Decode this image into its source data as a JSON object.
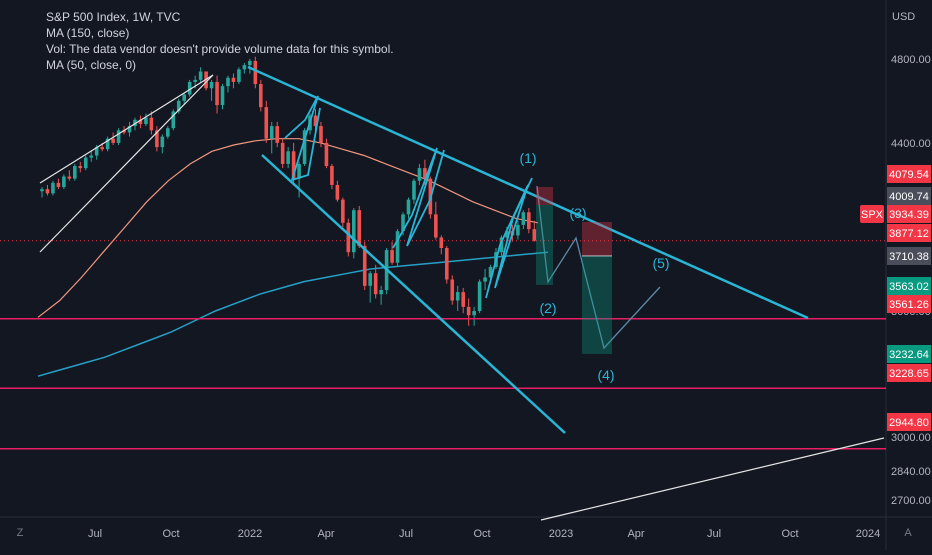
{
  "header": {
    "symbol_line": "S&P 500 Index, 1W, TVC",
    "ma150_label": "MA (150, close)",
    "vol_label": "Vol: The data vendor doesn't provide volume data for this symbol.",
    "ma50_label": "MA (50, close, 0)"
  },
  "corner": {
    "left_label": "Z",
    "right_label": "A"
  },
  "colors": {
    "background": "#131722",
    "candle_up": "#26a69a",
    "candle_down": "#ef5350",
    "ma150": "#26a0c6",
    "ma50": "#f0977e",
    "trendline": "#29b6d6",
    "support": "#e91e63",
    "white_line": "#e6e6e6",
    "price_tag": "#f23645"
  },
  "chart_data": {
    "type": "line",
    "title": "S&P 500 Index, 1W, TVC",
    "currency": "USD",
    "ylim": [
      2620,
      5080
    ],
    "x_ticks": [
      "Jul",
      "Oct",
      "2022",
      "Apr",
      "Jul",
      "Oct",
      "2023",
      "Apr",
      "Jul",
      "Oct",
      "2024"
    ],
    "y_ticks": [
      2700.0,
      2840.0,
      3000.0,
      3400.0,
      3600.0,
      4400.0,
      4800.0
    ],
    "price_labels": [
      {
        "label": "4079.54",
        "value": 4079.54,
        "color": "#f23645"
      },
      {
        "label": "4009.74",
        "value": 4009.74,
        "color": "#4a4e5a"
      },
      {
        "label": "SPX",
        "value": 3934.39,
        "color": "#f23645"
      },
      {
        "label": "3934.39",
        "value": 3934.39,
        "color": "#f23645"
      },
      {
        "label": "3877.12",
        "value": 3877.12,
        "color": "#f23645"
      },
      {
        "label": "3710.38",
        "value": 3710.38,
        "color": "#4a4e5a"
      },
      {
        "label": "3563.02",
        "value": 3563.02,
        "color": "#089981"
      },
      {
        "label": "3561.26",
        "value": 3561.26,
        "color": "#f23645"
      },
      {
        "label": "3232.64",
        "value": 3232.64,
        "color": "#089981"
      },
      {
        "label": "3228.65",
        "value": 3228.65,
        "color": "#f23645"
      },
      {
        "label": "2944.80",
        "value": 2944.8,
        "color": "#f23645"
      }
    ],
    "last_price": 3934.39,
    "support_levels": [
      3563.02,
      3232.64,
      2944.8
    ],
    "wave_labels": [
      "(1)",
      "(2)",
      "(3)",
      "(4)",
      "(5)"
    ],
    "series": [
      {
        "type": "candlestick",
        "values": [
          [
            4170,
            4190,
            4140,
            4180
          ],
          [
            4180,
            4200,
            4150,
            4160
          ],
          [
            4160,
            4220,
            4150,
            4210
          ],
          [
            4210,
            4230,
            4180,
            4190
          ],
          [
            4190,
            4250,
            4180,
            4240
          ],
          [
            4240,
            4270,
            4220,
            4230
          ],
          [
            4230,
            4300,
            4220,
            4290
          ],
          [
            4290,
            4310,
            4260,
            4280
          ],
          [
            4280,
            4340,
            4270,
            4330
          ],
          [
            4330,
            4360,
            4310,
            4340
          ],
          [
            4340,
            4390,
            4320,
            4380
          ],
          [
            4380,
            4400,
            4360,
            4370
          ],
          [
            4370,
            4430,
            4360,
            4420
          ],
          [
            4420,
            4450,
            4390,
            4400
          ],
          [
            4400,
            4470,
            4390,
            4460
          ],
          [
            4460,
            4480,
            4440,
            4450
          ],
          [
            4450,
            4500,
            4430,
            4480
          ],
          [
            4480,
            4520,
            4460,
            4510
          ],
          [
            4510,
            4530,
            4470,
            4490
          ],
          [
            4490,
            4540,
            4480,
            4520
          ],
          [
            4520,
            4550,
            4440,
            4460
          ],
          [
            4460,
            4480,
            4360,
            4380
          ],
          [
            4380,
            4440,
            4350,
            4430
          ],
          [
            4430,
            4480,
            4420,
            4470
          ],
          [
            4470,
            4560,
            4460,
            4550
          ],
          [
            4550,
            4610,
            4540,
            4600
          ],
          [
            4600,
            4640,
            4580,
            4630
          ],
          [
            4630,
            4700,
            4620,
            4690
          ],
          [
            4690,
            4720,
            4660,
            4700
          ],
          [
            4700,
            4760,
            4690,
            4740
          ],
          [
            4740,
            4720,
            4650,
            4660
          ],
          [
            4660,
            4700,
            4600,
            4690
          ],
          [
            4690,
            4720,
            4540,
            4580
          ],
          [
            4580,
            4680,
            4560,
            4670
          ],
          [
            4670,
            4720,
            4640,
            4710
          ],
          [
            4710,
            4730,
            4660,
            4690
          ],
          [
            4690,
            4760,
            4680,
            4750
          ],
          [
            4750,
            4780,
            4730,
            4770
          ],
          [
            4770,
            4800,
            4730,
            4790
          ],
          [
            4790,
            4810,
            4660,
            4680
          ],
          [
            4680,
            4700,
            4550,
            4570
          ],
          [
            4570,
            4600,
            4400,
            4420
          ],
          [
            4420,
            4500,
            4350,
            4480
          ],
          [
            4480,
            4500,
            4380,
            4400
          ],
          [
            4400,
            4420,
            4280,
            4300
          ],
          [
            4300,
            4380,
            4280,
            4360
          ],
          [
            4360,
            4400,
            4200,
            4230
          ],
          [
            4230,
            4310,
            4140,
            4300
          ],
          [
            4300,
            4470,
            4290,
            4460
          ],
          [
            4460,
            4540,
            4440,
            4530
          ],
          [
            4530,
            4560,
            4440,
            4480
          ],
          [
            4480,
            4500,
            4380,
            4400
          ],
          [
            4400,
            4420,
            4280,
            4290
          ],
          [
            4290,
            4300,
            4180,
            4200
          ],
          [
            4200,
            4220,
            4120,
            4130
          ],
          [
            4130,
            4140,
            4000,
            4020
          ],
          [
            4020,
            4040,
            3860,
            3880
          ],
          [
            3880,
            4090,
            3850,
            4080
          ],
          [
            4080,
            4100,
            3900,
            3910
          ],
          [
            3910,
            3930,
            3700,
            3720
          ],
          [
            3720,
            3790,
            3640,
            3780
          ],
          [
            3780,
            3820,
            3660,
            3680
          ],
          [
            3680,
            3720,
            3630,
            3700
          ],
          [
            3700,
            3900,
            3680,
            3890
          ],
          [
            3890,
            3930,
            3820,
            3830
          ],
          [
            3830,
            3990,
            3810,
            3980
          ],
          [
            3980,
            4070,
            3960,
            4060
          ],
          [
            4060,
            4140,
            4040,
            4130
          ],
          [
            4130,
            4230,
            4110,
            4220
          ],
          [
            4220,
            4300,
            4200,
            4280
          ],
          [
            4280,
            4320,
            4200,
            4230
          ],
          [
            4230,
            4240,
            4040,
            4060
          ],
          [
            4060,
            4120,
            3940,
            3950
          ],
          [
            3950,
            3960,
            3870,
            3900
          ],
          [
            3900,
            3910,
            3730,
            3750
          ],
          [
            3750,
            3770,
            3630,
            3650
          ],
          [
            3650,
            3720,
            3600,
            3690
          ],
          [
            3690,
            3710,
            3590,
            3620
          ],
          [
            3620,
            3660,
            3530,
            3580
          ],
          [
            3580,
            3620,
            3530,
            3600
          ],
          [
            3600,
            3750,
            3590,
            3740
          ],
          [
            3740,
            3800,
            3700,
            3760
          ],
          [
            3760,
            3820,
            3740,
            3810
          ],
          [
            3810,
            3900,
            3800,
            3880
          ],
          [
            3880,
            3960,
            3860,
            3950
          ],
          [
            3950,
            4000,
            3920,
            3980
          ],
          [
            3980,
            4010,
            3930,
            3960
          ],
          [
            3960,
            4030,
            3940,
            4010
          ],
          [
            4010,
            4080,
            3990,
            4070
          ],
          [
            4070,
            4090,
            3970,
            3990
          ],
          [
            3990,
            4030,
            3930,
            3934.39
          ]
        ]
      },
      {
        "name": "MA (150, close)",
        "values": [
          3290,
          3320,
          3350,
          3380,
          3420,
          3460,
          3500,
          3550,
          3600,
          3640,
          3680,
          3710,
          3740,
          3760,
          3780,
          3800,
          3810,
          3820,
          3830,
          3840,
          3850,
          3860,
          3870,
          3880
        ]
      },
      {
        "name": "MA (50, close, 0)",
        "values": [
          3570,
          3650,
          3760,
          3880,
          4000,
          4120,
          4220,
          4300,
          4360,
          4390,
          4410,
          4420,
          4420,
          4400,
          4370,
          4340,
          4300,
          4260,
          4220,
          4170,
          4120,
          4080,
          4040,
          4020
        ]
      }
    ]
  }
}
